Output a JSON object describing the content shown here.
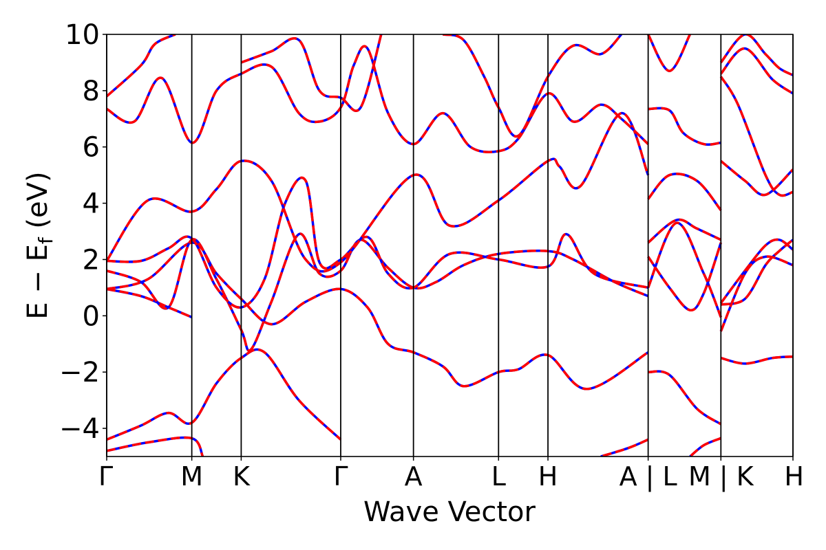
{
  "chart_data": {
    "type": "line",
    "title": "",
    "xlabel": "Wave Vector",
    "ylabel": "E − E",
    "ylabel_sub": "f",
    "ylabel_unit": " (eV)",
    "ylim": [
      -5,
      10
    ],
    "yticks": [
      -4,
      -2,
      0,
      2,
      4,
      6,
      8,
      10
    ],
    "ytick_labels": [
      "−4",
      "−2",
      "0",
      "2",
      "4",
      "6",
      "8",
      "10"
    ],
    "xlim": [
      0,
      1
    ],
    "high_symmetry_points": [
      {
        "label": "Γ",
        "x": 0.0
      },
      {
        "label": "M",
        "x": 0.124
      },
      {
        "label": "K",
        "x": 0.196
      },
      {
        "label": "Γ",
        "x": 0.341
      },
      {
        "label": "A",
        "x": 0.447
      },
      {
        "label": "L",
        "x": 0.571
      },
      {
        "label": "H",
        "x": 0.643
      },
      {
        "label": "A | L",
        "x": 0.789
      },
      {
        "label": "M | K",
        "x": 0.895
      },
      {
        "label": "H",
        "x": 1.0
      }
    ],
    "grid": false,
    "legend": "none",
    "series_style": [
      {
        "color": "#0000ff",
        "dash": "solid"
      },
      {
        "color": "#ff0000",
        "dash": "dashed"
      }
    ],
    "series": [
      {
        "values": [
          [
            0,
            -4.4
          ],
          [
            0.05,
            -3.9
          ],
          [
            0.09,
            -3.45
          ],
          [
            0.124,
            -3.8
          ],
          [
            0.16,
            -2.4
          ],
          [
            0.196,
            -1.5
          ],
          [
            0.23,
            -1.3
          ],
          [
            0.28,
            -3.0
          ],
          [
            0.341,
            -4.4
          ]
        ]
      },
      {
        "values": [
          [
            0,
            -4.8
          ],
          [
            0.06,
            -4.5
          ],
          [
            0.124,
            -4.35
          ],
          [
            0.14,
            -5.0
          ]
        ]
      },
      {
        "values": [
          [
            0,
            0.95
          ],
          [
            0.05,
            0.7
          ],
          [
            0.09,
            0.3
          ],
          [
            0.124,
            -0.05
          ]
        ]
      },
      {
        "values": [
          [
            0,
            0.95
          ],
          [
            0.06,
            1.3
          ],
          [
            0.124,
            2.6
          ],
          [
            0.16,
            1.5
          ],
          [
            0.196,
            0.6
          ],
          [
            0.24,
            -0.3
          ],
          [
            0.29,
            0.5
          ],
          [
            0.341,
            0.95
          ],
          [
            0.38,
            0.3
          ],
          [
            0.41,
            -1.0
          ],
          [
            0.447,
            -1.3
          ],
          [
            0.49,
            -1.8
          ],
          [
            0.52,
            -2.5
          ],
          [
            0.571,
            -2.0
          ],
          [
            0.6,
            -1.9
          ],
          [
            0.643,
            -1.4
          ],
          [
            0.7,
            -2.6
          ],
          [
            0.789,
            -1.3
          ]
        ]
      },
      {
        "values": [
          [
            0,
            1.6
          ],
          [
            0.05,
            1.2
          ],
          [
            0.09,
            0.3
          ],
          [
            0.124,
            2.7
          ],
          [
            0.16,
            1.3
          ],
          [
            0.196,
            -0.5
          ],
          [
            0.21,
            -1.2
          ],
          [
            0.24,
            0.5
          ],
          [
            0.28,
            2.9
          ],
          [
            0.31,
            1.5
          ],
          [
            0.341,
            1.6
          ],
          [
            0.37,
            2.7
          ],
          [
            0.41,
            1.7
          ],
          [
            0.447,
            1.0
          ],
          [
            0.48,
            1.2
          ],
          [
            0.52,
            1.8
          ],
          [
            0.571,
            2.2
          ],
          [
            0.643,
            2.3
          ],
          [
            0.68,
            2.0
          ],
          [
            0.74,
            1.2
          ],
          [
            0.789,
            0.7
          ]
        ]
      },
      {
        "values": [
          [
            0,
            1.95
          ],
          [
            0.05,
            1.95
          ],
          [
            0.09,
            2.4
          ],
          [
            0.124,
            2.75
          ],
          [
            0.16,
            1.0
          ],
          [
            0.196,
            0.3
          ],
          [
            0.23,
            1.3
          ],
          [
            0.26,
            4.0
          ],
          [
            0.29,
            4.8
          ],
          [
            0.31,
            1.9
          ],
          [
            0.341,
            2.0
          ],
          [
            0.38,
            2.8
          ],
          [
            0.41,
            1.5
          ],
          [
            0.447,
            1.0
          ],
          [
            0.5,
            2.2
          ],
          [
            0.571,
            2.0
          ],
          [
            0.643,
            1.75
          ],
          [
            0.67,
            2.9
          ],
          [
            0.71,
            1.5
          ],
          [
            0.789,
            1.0
          ]
        ]
      },
      {
        "values": [
          [
            0,
            1.95
          ],
          [
            0.06,
            4.1
          ],
          [
            0.124,
            3.7
          ],
          [
            0.16,
            4.5
          ],
          [
            0.196,
            5.5
          ],
          [
            0.24,
            4.8
          ],
          [
            0.29,
            2.0
          ],
          [
            0.341,
            1.9
          ],
          [
            0.447,
            5.0
          ],
          [
            0.5,
            3.2
          ],
          [
            0.571,
            4.1
          ],
          [
            0.643,
            5.5
          ],
          [
            0.66,
            5.3
          ],
          [
            0.69,
            4.6
          ],
          [
            0.75,
            7.2
          ],
          [
            0.789,
            5.0
          ]
        ]
      },
      {
        "values": [
          [
            0,
            7.8
          ],
          [
            0.05,
            8.9
          ],
          [
            0.07,
            9.65
          ],
          [
            0.1,
            10.0
          ]
        ]
      },
      {
        "values": [
          [
            0,
            7.35
          ],
          [
            0.04,
            6.9
          ],
          [
            0.08,
            8.45
          ],
          [
            0.124,
            6.15
          ],
          [
            0.16,
            8.0
          ],
          [
            0.196,
            8.6
          ],
          [
            0.24,
            8.85
          ],
          [
            0.28,
            7.2
          ],
          [
            0.31,
            6.9
          ],
          [
            0.341,
            7.4
          ],
          [
            0.36,
            8.9
          ],
          [
            0.38,
            9.5
          ],
          [
            0.41,
            7.2
          ],
          [
            0.447,
            6.1
          ],
          [
            0.49,
            7.2
          ],
          [
            0.53,
            6.0
          ],
          [
            0.571,
            5.85
          ],
          [
            0.6,
            6.3
          ],
          [
            0.643,
            7.9
          ],
          [
            0.68,
            6.9
          ],
          [
            0.72,
            7.5
          ],
          [
            0.75,
            7.0
          ],
          [
            0.789,
            6.1
          ]
        ]
      },
      {
        "values": [
          [
            0.196,
            9.0
          ],
          [
            0.24,
            9.4
          ],
          [
            0.28,
            9.8
          ],
          [
            0.31,
            8.0
          ],
          [
            0.341,
            7.75
          ],
          [
            0.37,
            7.4
          ],
          [
            0.4,
            10.0
          ]
        ]
      },
      {
        "values": [
          [
            0.49,
            10.0
          ],
          [
            0.52,
            9.8
          ],
          [
            0.55,
            8.5
          ],
          [
            0.571,
            7.4
          ],
          [
            0.6,
            6.4
          ],
          [
            0.643,
            8.5
          ],
          [
            0.68,
            9.6
          ],
          [
            0.72,
            9.3
          ],
          [
            0.75,
            10.0
          ]
        ]
      },
      {
        "values": [
          [
            0.789,
            7.35
          ],
          [
            0.82,
            7.3
          ],
          [
            0.84,
            6.5
          ],
          [
            0.87,
            6.1
          ],
          [
            0.895,
            6.15
          ]
        ]
      },
      {
        "values": [
          [
            0.789,
            4.15
          ],
          [
            0.82,
            5.0
          ],
          [
            0.86,
            4.8
          ],
          [
            0.895,
            3.75
          ]
        ]
      },
      {
        "values": [
          [
            0.789,
            2.6
          ],
          [
            0.83,
            3.4
          ],
          [
            0.86,
            3.1
          ],
          [
            0.895,
            2.7
          ]
        ]
      },
      {
        "values": [
          [
            0.789,
            2.1
          ],
          [
            0.82,
            1.0
          ],
          [
            0.85,
            0.2
          ],
          [
            0.87,
            0.8
          ],
          [
            0.895,
            2.6
          ]
        ]
      },
      {
        "values": [
          [
            0.789,
            1.0
          ],
          [
            0.83,
            3.3
          ],
          [
            0.87,
            1.5
          ],
          [
            0.895,
            -0.05
          ]
        ]
      },
      {
        "values": [
          [
            0.789,
            -2.0
          ],
          [
            0.82,
            -2.1
          ],
          [
            0.86,
            -3.3
          ],
          [
            0.895,
            -3.85
          ]
        ]
      },
      {
        "values": [
          [
            0.789,
            -4.4
          ],
          [
            0.76,
            -4.7
          ],
          [
            0.72,
            -5.0
          ]
        ]
      },
      {
        "values": [
          [
            0.789,
            10.0
          ],
          [
            0.82,
            8.7
          ],
          [
            0.85,
            10.0
          ]
        ]
      },
      {
        "values": [
          [
            0.895,
            -4.35
          ],
          [
            0.87,
            -4.6
          ],
          [
            0.85,
            -5.0
          ]
        ]
      },
      {
        "values": [
          [
            0.895,
            9.0
          ],
          [
            0.93,
            10.0
          ],
          [
            0.96,
            9.3
          ],
          [
            0.98,
            8.8
          ],
          [
            1.0,
            8.55
          ]
        ]
      },
      {
        "values": [
          [
            0.895,
            8.6
          ],
          [
            0.93,
            9.5
          ],
          [
            0.97,
            8.4
          ],
          [
            1.0,
            7.9
          ]
        ]
      },
      {
        "values": [
          [
            0.895,
            8.5
          ],
          [
            0.92,
            7.5
          ],
          [
            0.96,
            5.0
          ],
          [
            0.98,
            4.3
          ],
          [
            1.0,
            4.4
          ]
        ]
      },
      {
        "values": [
          [
            0.895,
            5.5
          ],
          [
            0.93,
            4.8
          ],
          [
            0.96,
            4.3
          ],
          [
            1.0,
            5.2
          ]
        ]
      },
      {
        "values": [
          [
            0.895,
            0.4
          ],
          [
            0.93,
            0.6
          ],
          [
            0.96,
            1.8
          ],
          [
            0.98,
            2.3
          ],
          [
            1.0,
            2.7
          ]
        ]
      },
      {
        "values": [
          [
            0.895,
            0.45
          ],
          [
            0.93,
            1.6
          ],
          [
            0.96,
            2.5
          ],
          [
            0.98,
            2.7
          ],
          [
            1.0,
            2.35
          ]
        ]
      },
      {
        "values": [
          [
            0.895,
            -0.55
          ],
          [
            0.93,
            1.5
          ],
          [
            0.96,
            2.1
          ],
          [
            1.0,
            1.8
          ]
        ]
      },
      {
        "values": [
          [
            0.895,
            -1.5
          ],
          [
            0.93,
            -1.7
          ],
          [
            0.97,
            -1.5
          ],
          [
            1.0,
            -1.45
          ]
        ]
      }
    ]
  }
}
